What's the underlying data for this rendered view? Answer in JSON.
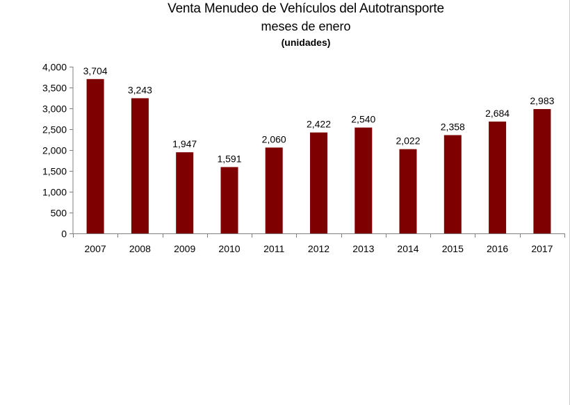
{
  "chart_data": {
    "type": "bar",
    "title": "Venta Menudeo de Vehículos del Autotransporte",
    "subtitle": "meses de enero",
    "unit_label": "(unidades)",
    "categories": [
      "2007",
      "2008",
      "2009",
      "2010",
      "2011",
      "2012",
      "2013",
      "2014",
      "2015",
      "2016",
      "2017"
    ],
    "values": [
      3704,
      3243,
      1947,
      1591,
      2060,
      2422,
      2540,
      2022,
      2358,
      2684,
      2983
    ],
    "value_labels": [
      "3,704",
      "3,243",
      "1,947",
      "1,591",
      "2,060",
      "2,422",
      "2,540",
      "2,022",
      "2,358",
      "2,684",
      "2,983"
    ],
    "y_ticks": [
      0,
      500,
      1000,
      1500,
      2000,
      2500,
      3000,
      3500,
      4000
    ],
    "y_tick_labels": [
      "0",
      "500",
      "1,000",
      "1,500",
      "2,000",
      "2,500",
      "3,000",
      "3,500",
      "4,000"
    ],
    "ylim": [
      0,
      4000
    ],
    "xlabel": "",
    "ylabel": "",
    "grid": false,
    "legend": "none",
    "bar_color": "#7f0000"
  }
}
